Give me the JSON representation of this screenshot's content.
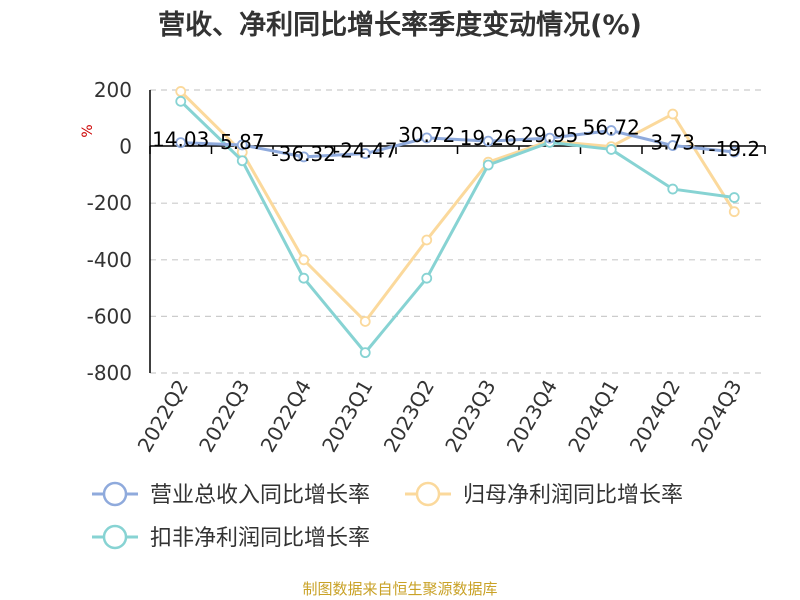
{
  "chart_data": {
    "type": "line",
    "title": "营收、净利同比增长率季度变动情况(%)",
    "ylabel": "%",
    "ylim": [
      -800,
      200
    ],
    "yticks": [
      200,
      0,
      -200,
      -400,
      -600,
      -800
    ],
    "categories": [
      "2022Q2",
      "2022Q3",
      "2022Q4",
      "2023Q1",
      "2023Q2",
      "2023Q3",
      "2023Q4",
      "2024Q1",
      "2024Q2",
      "2024Q3"
    ],
    "grid": true,
    "legend_position": "bottom",
    "series": [
      {
        "name": "营业总收入同比增长率",
        "color": "#8faadc",
        "values": [
          14.03,
          5.87,
          -36.32,
          -24.47,
          30.72,
          19.26,
          29.95,
          56.72,
          3.73,
          -19.2
        ],
        "labels": [
          "14.03",
          "5.87",
          "-36.32",
          "-24.47",
          "30.72",
          "19.26",
          "29.95",
          "56.72",
          "3.73",
          "-19.2"
        ]
      },
      {
        "name": "归母净利润同比增长率",
        "color": "#fbd99c",
        "values": [
          195,
          -20,
          -400,
          -618,
          -330,
          -55,
          20,
          0,
          115,
          -230
        ]
      },
      {
        "name": "扣非净利润同比增长率",
        "color": "#87d3d3",
        "values": [
          160,
          -50,
          -465,
          -728,
          -465,
          -65,
          15,
          -10,
          -150,
          -180
        ]
      }
    ]
  },
  "source": "制图数据来自恒生聚源数据库"
}
